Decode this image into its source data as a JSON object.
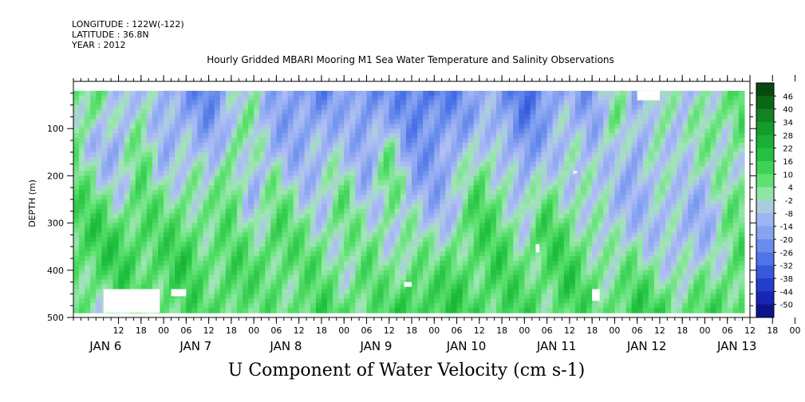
{
  "header": {
    "longitude": "LONGITUDE : 122W(-122)",
    "latitude": "LATITUDE : 36.8N",
    "year": "YEAR : 2012",
    "title": "Hourly Gridded MBARI Mooring M1 Sea Water Temperature and Salinity Observations"
  },
  "chart_data": {
    "type": "heatmap",
    "title": "Hourly Gridded MBARI Mooring M1 Sea Water Temperature and Salinity Observations",
    "xlabel": "",
    "ylabel": "DEPTH (m)",
    "variable_label": "U Component of Water Velocity (cm s-1)",
    "xlim_hours_from_jan6_00": [
      -6,
      174
    ],
    "ylim": [
      500,
      0
    ],
    "y_ticks": [
      100,
      200,
      300,
      400,
      500
    ],
    "y_tick_labels": [
      "100",
      "200",
      "300",
      "400",
      "500"
    ],
    "x_hour_ticks": [
      "12",
      "18",
      "00",
      "06",
      "12",
      "18",
      "00",
      "06",
      "12",
      "18",
      "00",
      "06",
      "12",
      "18",
      "00",
      "06",
      "12",
      "18",
      "00",
      "06",
      "12",
      "18",
      "00",
      "06",
      "12",
      "18",
      "00",
      "06",
      "12",
      "18",
      "00",
      "06"
    ],
    "x_day_labels": [
      {
        "label": "JAN  6",
        "hour": 0
      },
      {
        "label": "JAN  7",
        "hour": 24
      },
      {
        "label": "JAN  8",
        "hour": 48
      },
      {
        "label": "JAN  9",
        "hour": 72
      },
      {
        "label": "JAN 10",
        "hour": 96
      },
      {
        "label": "JAN 11",
        "hour": 120
      },
      {
        "label": "JAN 12",
        "hour": 144
      },
      {
        "label": "JAN 13",
        "hour": 168
      }
    ],
    "data_extent": {
      "hour_start": -6,
      "hour_end": 172,
      "depth_top": 20,
      "depth_bottom": 490
    },
    "colorbar": {
      "levels": [
        "46",
        "40",
        "34",
        "28",
        "22",
        "16",
        "10",
        "4",
        "-2",
        "-8",
        "-14",
        "-20",
        "-26",
        "-32",
        "-38",
        "-44",
        "-50"
      ],
      "min": -50,
      "max": 52
    },
    "columns": [
      {
        "hour": -6,
        "values": [
          10,
          8,
          6,
          8,
          12,
          14,
          10,
          8,
          6
        ]
      },
      {
        "hour": 0,
        "values": [
          6,
          4,
          -4,
          2,
          10,
          16,
          14,
          8,
          4
        ]
      },
      {
        "hour": 6,
        "values": [
          -6,
          -8,
          -10,
          -4,
          4,
          12,
          16,
          12,
          6
        ]
      },
      {
        "hour": 12,
        "values": [
          2,
          6,
          10,
          8,
          10,
          14,
          12,
          10,
          8
        ]
      },
      {
        "hour": 18,
        "values": [
          -10,
          -8,
          -6,
          -2,
          6,
          10,
          14,
          12,
          10
        ]
      },
      {
        "hour": 24,
        "values": [
          -14,
          -12,
          -6,
          4,
          8,
          12,
          16,
          14,
          12
        ]
      },
      {
        "hour": 30,
        "values": [
          -20,
          -14,
          -10,
          -4,
          2,
          8,
          10,
          8,
          10
        ]
      },
      {
        "hour": 36,
        "values": [
          -8,
          -4,
          6,
          12,
          10,
          8,
          12,
          16,
          12
        ]
      },
      {
        "hour": 42,
        "values": [
          6,
          4,
          -2,
          -8,
          -4,
          4,
          10,
          8,
          6
        ]
      },
      {
        "hour": 48,
        "values": [
          -12,
          -10,
          -6,
          2,
          8,
          14,
          12,
          10,
          8
        ]
      },
      {
        "hour": 54,
        "values": [
          -16,
          -14,
          -10,
          -4,
          2,
          6,
          10,
          8,
          12
        ]
      },
      {
        "hour": 60,
        "values": [
          -18,
          -12,
          -8,
          -6,
          -2,
          4,
          8,
          10,
          14
        ]
      },
      {
        "hour": 66,
        "values": [
          -10,
          -6,
          -2,
          4,
          8,
          6,
          4,
          6,
          10
        ]
      },
      {
        "hour": 72,
        "values": [
          -20,
          -16,
          -12,
          -8,
          -4,
          2,
          8,
          12,
          10
        ]
      },
      {
        "hour": 78,
        "values": [
          -14,
          -10,
          4,
          10,
          8,
          4,
          2,
          6,
          12
        ]
      },
      {
        "hour": 84,
        "values": [
          -22,
          -18,
          -14,
          -10,
          -6,
          2,
          10,
          16,
          18
        ]
      },
      {
        "hour": 90,
        "values": [
          -26,
          -20,
          -16,
          -12,
          -8,
          -4,
          4,
          12,
          16
        ]
      },
      {
        "hour": 96,
        "values": [
          -16,
          -14,
          -10,
          -6,
          -2,
          6,
          12,
          16,
          14
        ]
      },
      {
        "hour": 102,
        "values": [
          -10,
          -8,
          4,
          10,
          14,
          12,
          10,
          12,
          16
        ]
      },
      {
        "hour": 108,
        "values": [
          -14,
          -12,
          -8,
          2,
          8,
          12,
          14,
          12,
          10
        ]
      },
      {
        "hour": 114,
        "values": [
          -24,
          -20,
          -16,
          -12,
          -6,
          2,
          8,
          12,
          14
        ]
      },
      {
        "hour": 120,
        "values": [
          -18,
          -12,
          -6,
          4,
          10,
          14,
          12,
          10,
          8
        ]
      },
      {
        "hour": 126,
        "values": [
          -8,
          -6,
          -4,
          -2,
          4,
          10,
          14,
          16,
          12
        ]
      },
      {
        "hour": 132,
        "values": [
          -14,
          -10,
          -6,
          -4,
          -2,
          4,
          8,
          10,
          8
        ]
      },
      {
        "hour": 138,
        "values": [
          2,
          6,
          4,
          -2,
          -6,
          -4,
          2,
          8,
          12
        ]
      },
      {
        "hour": 144,
        "values": [
          -10,
          -8,
          -14,
          -10,
          -6,
          -2,
          6,
          12,
          16
        ]
      },
      {
        "hour": 150,
        "values": [
          6,
          8,
          4,
          -2,
          -6,
          -4,
          2,
          10,
          14
        ]
      },
      {
        "hour": 156,
        "values": [
          -8,
          -6,
          -2,
          2,
          -4,
          -8,
          -4,
          4,
          10
        ]
      },
      {
        "hour": 162,
        "values": [
          4,
          6,
          2,
          -4,
          -8,
          -6,
          -2,
          6,
          12
        ]
      },
      {
        "hour": 168,
        "values": [
          6,
          8,
          4,
          2,
          4,
          6,
          8,
          10,
          10
        ]
      },
      {
        "hour": 172,
        "values": [
          10,
          12,
          8,
          4,
          6,
          8,
          10,
          12,
          12
        ]
      }
    ],
    "column_depths": [
      20,
      80,
      140,
      200,
      260,
      320,
      380,
      440,
      490
    ]
  }
}
